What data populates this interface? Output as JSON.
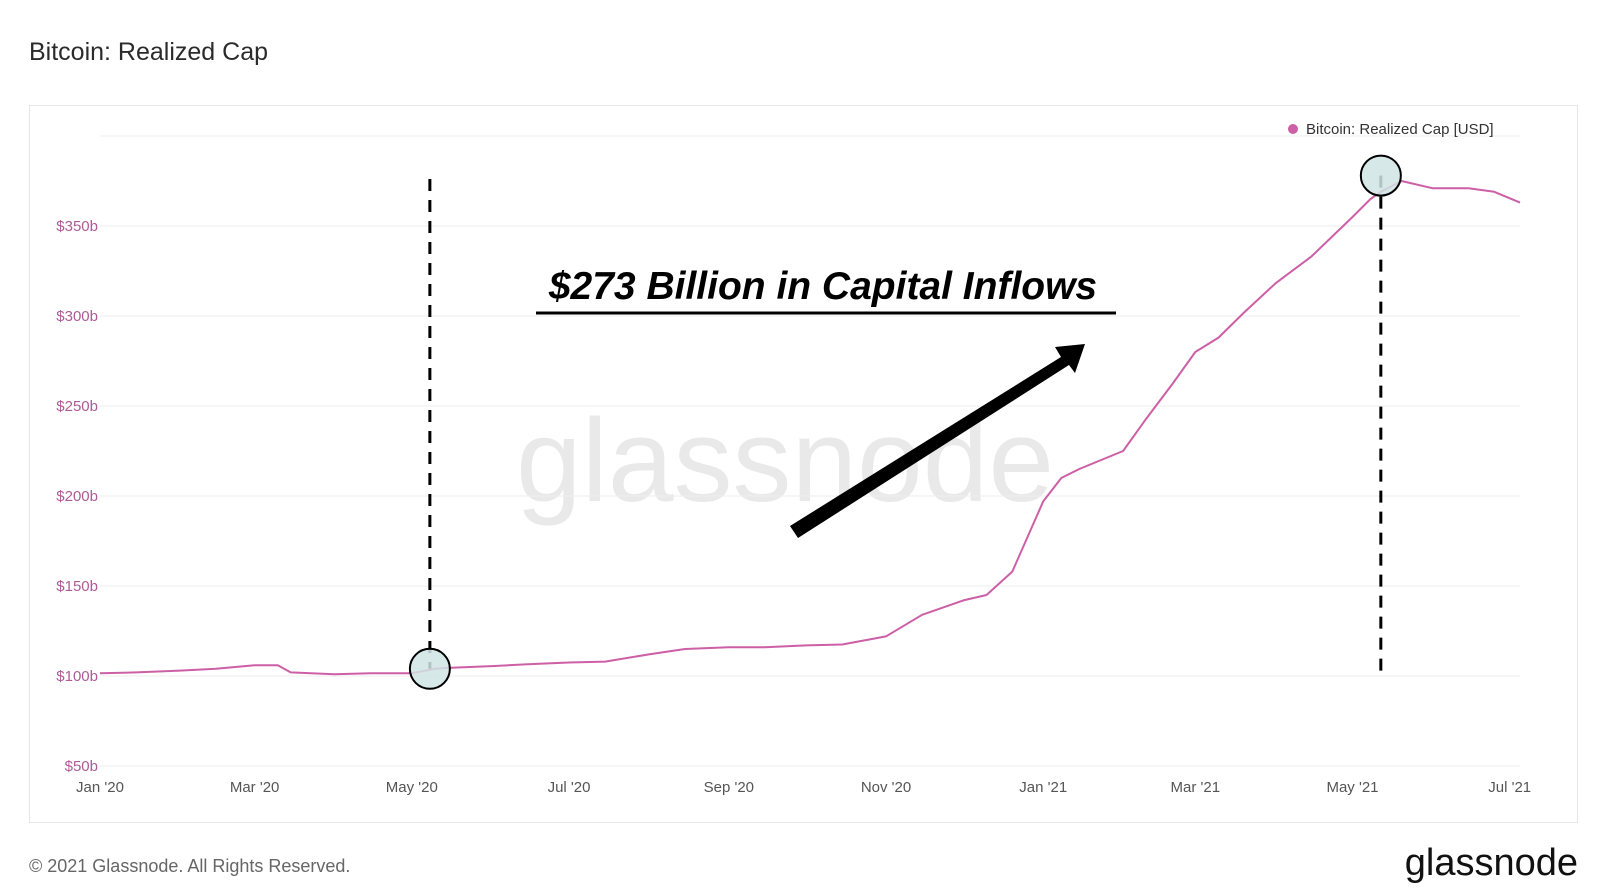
{
  "page": {
    "title": "Bitcoin: Realized Cap",
    "footer_copyright": "© 2021 Glassnode. All Rights Reserved.",
    "footer_logo": "glassnode",
    "watermark": "glassnode"
  },
  "colors": {
    "series": "#cc5fa6",
    "axis_label": "#b05a98",
    "grid": "#eeeeee",
    "marker_fill": "#cfe4e3"
  },
  "annotation": {
    "text": "$273 Billion in Capital Inflows",
    "arrow": "arrow-up-right"
  },
  "chart_data": {
    "type": "line",
    "title": "Bitcoin: Realized Cap",
    "xlabel": "",
    "ylabel": "",
    "ylim": [
      50,
      400
    ],
    "yticks": [
      {
        "value": 50,
        "label": "$50b"
      },
      {
        "value": 100,
        "label": "$100b"
      },
      {
        "value": 150,
        "label": "$150b"
      },
      {
        "value": 200,
        "label": "$200b"
      },
      {
        "value": 250,
        "label": "$250b"
      },
      {
        "value": 300,
        "label": "$300b"
      },
      {
        "value": 350,
        "label": "$350b"
      }
    ],
    "xlim": [
      "2020-01-01",
      "2021-07-05"
    ],
    "xticks": [
      {
        "date": "2020-01-01",
        "label": "Jan '20"
      },
      {
        "date": "2020-03-01",
        "label": "Mar '20"
      },
      {
        "date": "2020-05-01",
        "label": "May '20"
      },
      {
        "date": "2020-07-01",
        "label": "Jul '20"
      },
      {
        "date": "2020-09-01",
        "label": "Sep '20"
      },
      {
        "date": "2020-11-01",
        "label": "Nov '20"
      },
      {
        "date": "2021-01-01",
        "label": "Jan '21"
      },
      {
        "date": "2021-03-01",
        "label": "Mar '21"
      },
      {
        "date": "2021-05-01",
        "label": "May '21"
      },
      {
        "date": "2021-07-01",
        "label": "Jul '21"
      }
    ],
    "grid": true,
    "legend": "top-right",
    "series": [
      {
        "name": "Bitcoin: Realized Cap [USD]",
        "x": [
          "2020-01-01",
          "2020-01-15",
          "2020-02-01",
          "2020-02-15",
          "2020-03-01",
          "2020-03-10",
          "2020-03-15",
          "2020-04-01",
          "2020-04-15",
          "2020-05-01",
          "2020-05-10",
          "2020-05-15",
          "2020-06-01",
          "2020-06-15",
          "2020-07-01",
          "2020-07-15",
          "2020-08-01",
          "2020-08-15",
          "2020-09-01",
          "2020-09-15",
          "2020-10-01",
          "2020-10-15",
          "2020-11-01",
          "2020-11-15",
          "2020-12-01",
          "2020-12-10",
          "2020-12-20",
          "2021-01-01",
          "2021-01-08",
          "2021-01-15",
          "2021-02-01",
          "2021-02-10",
          "2021-02-20",
          "2021-03-01",
          "2021-03-10",
          "2021-03-20",
          "2021-04-01",
          "2021-04-15",
          "2021-05-01",
          "2021-05-08",
          "2021-05-12",
          "2021-05-20",
          "2021-06-01",
          "2021-06-15",
          "2021-06-25",
          "2021-07-05"
        ],
        "y": [
          101.5,
          102,
          103,
          104,
          106,
          106,
          102,
          101,
          101.5,
          101.5,
          104,
          104.5,
          105.5,
          106.5,
          107.5,
          108,
          112,
          115,
          116,
          116,
          117,
          117.5,
          122,
          134,
          142,
          145,
          158,
          197,
          210,
          215,
          225,
          243,
          262,
          280,
          288,
          302,
          318,
          333,
          355,
          365,
          369,
          375,
          371,
          371,
          369,
          363
        ]
      }
    ],
    "markers": [
      {
        "date": "2020-05-08",
        "value": 104
      },
      {
        "date": "2021-05-12",
        "value": 378
      }
    ]
  }
}
